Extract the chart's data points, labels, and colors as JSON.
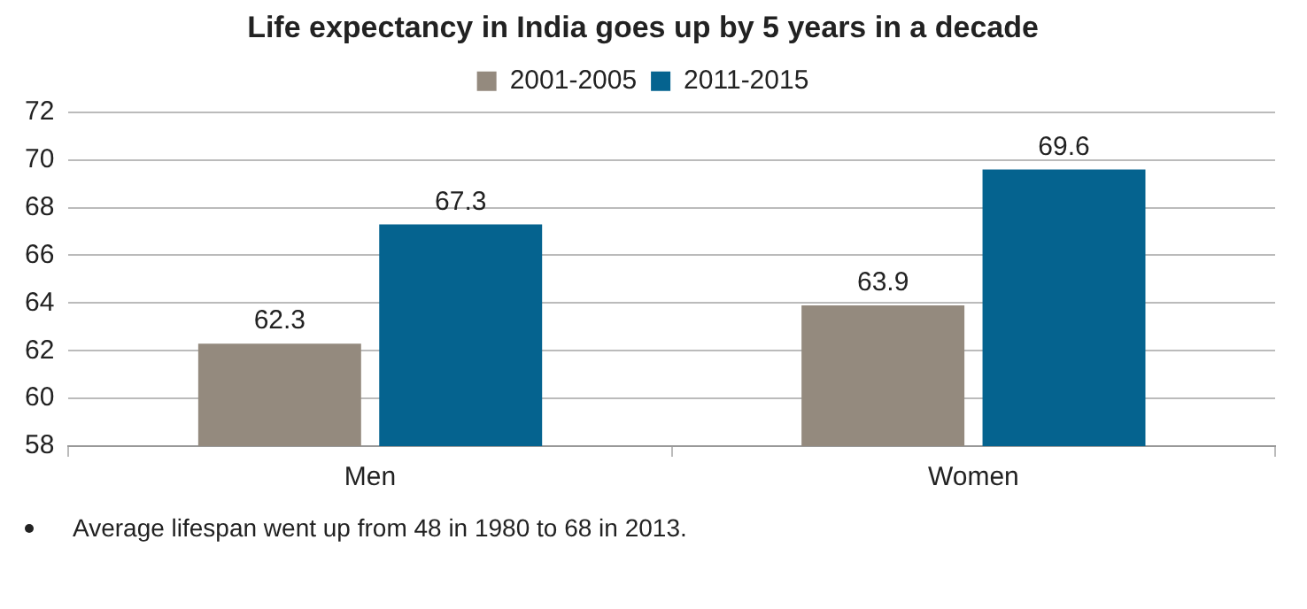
{
  "chart_data": {
    "type": "bar",
    "title": "Life expectancy in India goes up by 5 years in a decade",
    "categories": [
      "Men",
      "Women"
    ],
    "series": [
      {
        "name": "2001-2005",
        "color": "#948a7e",
        "values": [
          62.3,
          63.9
        ]
      },
      {
        "name": "2011-2015",
        "color": "#05638f",
        "values": [
          67.3,
          69.6
        ]
      }
    ],
    "ylim": [
      58,
      72
    ],
    "yticks": [
      58,
      60,
      62,
      64,
      66,
      68,
      70,
      72
    ],
    "grid": "y",
    "legend": "top",
    "data_labels": true,
    "annotations": [
      "Average lifespan went up from 48 in 1980 to 68 in 2013."
    ]
  }
}
